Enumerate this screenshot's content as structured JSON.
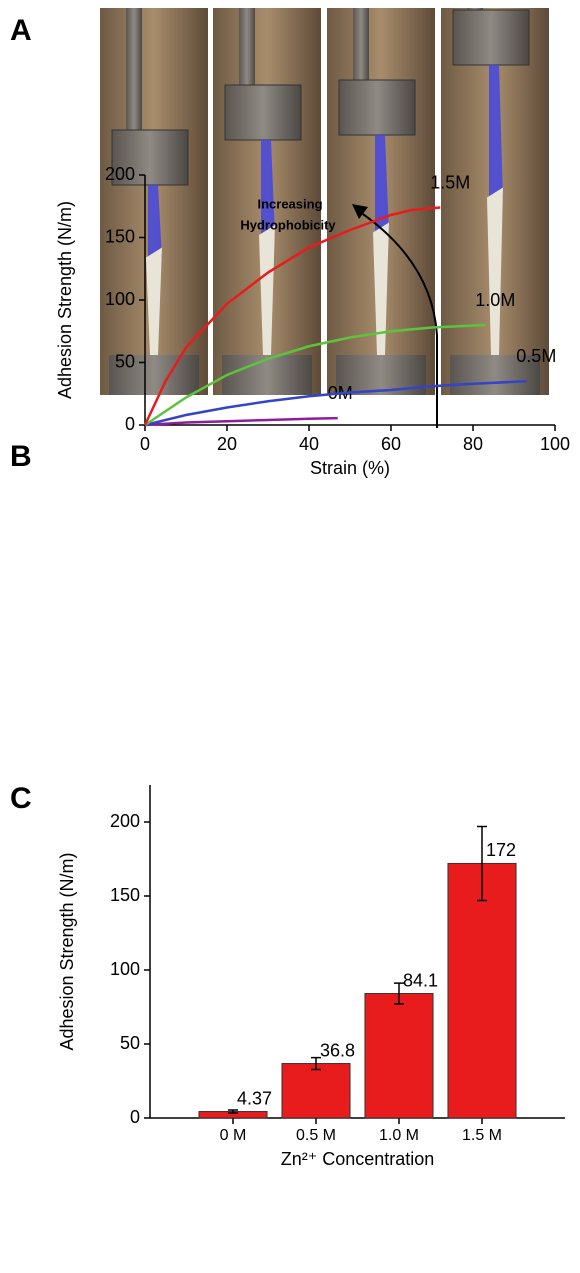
{
  "panel_labels": [
    "A",
    "B",
    "C"
  ],
  "chart_data": [
    {
      "type": "line",
      "xlabel": "Strain (%)",
      "ylabel": "Adhesion Strength (N/m)",
      "annotation": [
        "Increasing",
        "Hydrophobicity"
      ],
      "xlim": [
        0,
        100
      ],
      "xticks": [
        0,
        20,
        40,
        60,
        80,
        100
      ],
      "ylim": [
        0,
        200
      ],
      "yticks": [
        0,
        50,
        100,
        150,
        200
      ],
      "series": [
        {
          "name": "0M",
          "color": "#8e1c9c",
          "x": [
            0,
            10,
            20,
            30,
            40,
            47
          ],
          "values": [
            0,
            2,
            3,
            4,
            5,
            5.5
          ]
        },
        {
          "name": "0.5M",
          "color": "#3344c8",
          "x": [
            0,
            10,
            20,
            30,
            40,
            50,
            60,
            70,
            80,
            93
          ],
          "values": [
            0,
            8,
            14,
            19,
            23,
            26,
            28,
            31,
            33,
            35
          ]
        },
        {
          "name": "1.0M",
          "color": "#5cc43c",
          "x": [
            0,
            10,
            20,
            30,
            40,
            50,
            60,
            70,
            83
          ],
          "values": [
            0,
            22,
            40,
            53,
            63,
            70,
            75,
            78,
            80
          ]
        },
        {
          "name": "1.5M",
          "color": "#e81c1c",
          "x": [
            0,
            5,
            10,
            20,
            30,
            40,
            50,
            60,
            65,
            72
          ],
          "values": [
            0,
            35,
            62,
            97,
            122,
            142,
            156,
            168,
            172,
            174
          ]
        }
      ]
    },
    {
      "type": "bar",
      "xlabel": "Zn²⁺ Concentration",
      "ylabel": "Adhesion Strength (N/m)",
      "categories": [
        "0 M",
        "0.5 M",
        "1.0 M",
        "1.5 M"
      ],
      "values": [
        4.37,
        36.8,
        84.1,
        172
      ],
      "errors": [
        1,
        4,
        7,
        25
      ],
      "color": "#e81c1c",
      "ylim": [
        0,
        225
      ],
      "yticks": [
        0,
        50,
        100,
        150,
        200
      ]
    }
  ]
}
